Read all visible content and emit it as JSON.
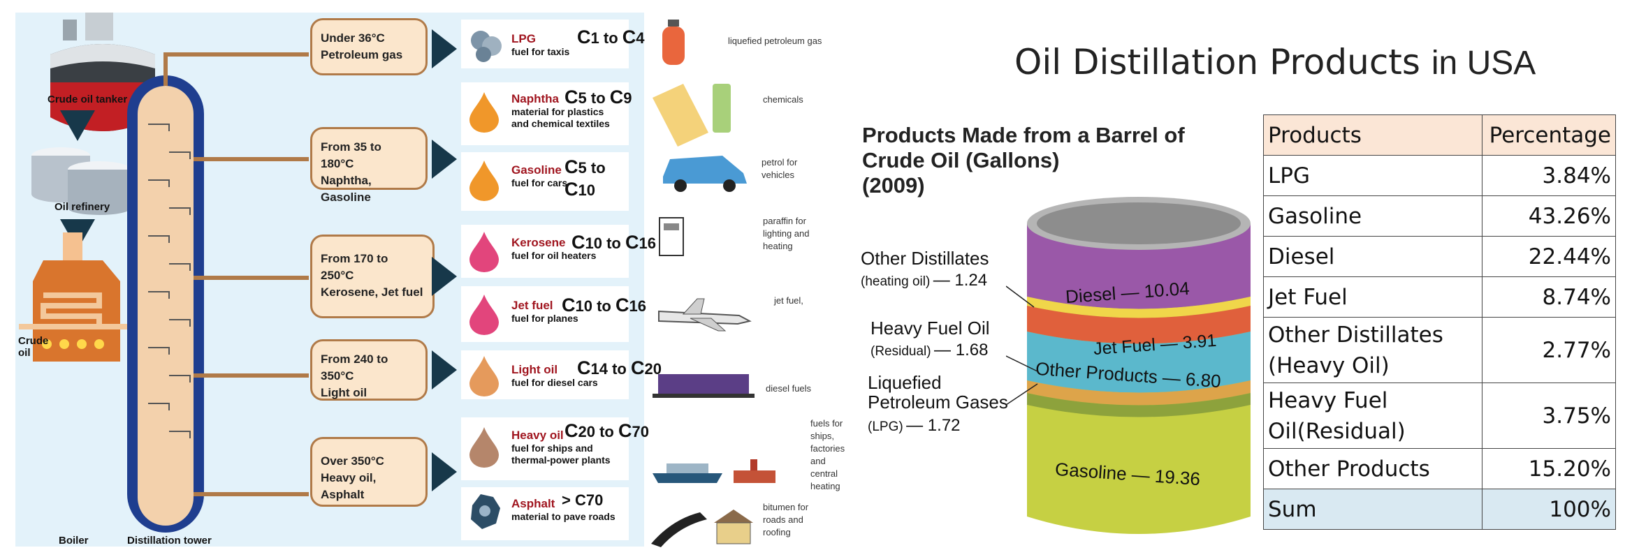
{
  "left_diagram": {
    "tanker_label": "Crude oil tanker",
    "refinery_label": "Oil refinery",
    "boiler_label": "Boiler",
    "crude_oil_label": "Crude oil",
    "tower_label": "Distillation tower",
    "fractions": [
      {
        "temp": "Under 36°C",
        "name": "Petroleum gas"
      },
      {
        "temp": "From 35 to 180°C",
        "name": "Naphtha, Gasoline"
      },
      {
        "temp": "From 170 to 250°C",
        "name": "Kerosene, Jet fuel"
      },
      {
        "temp": "From 240 to 350°C",
        "name": "Light oil"
      },
      {
        "temp": "Over 350°C",
        "name": "Heavy oil, Asphalt"
      }
    ],
    "products": [
      {
        "name": "LPG",
        "use": "fuel for taxis",
        "c_from": "1",
        "c_to": "4",
        "color": "#7d94a8"
      },
      {
        "name": "Naphtha",
        "use": "material for plastics and chemical textiles",
        "c_from": "5",
        "c_to": "9",
        "color": "#f0972a"
      },
      {
        "name": "Gasoline",
        "use": "fuel for cars",
        "c_from": "5",
        "c_to": "10",
        "color": "#f0972a"
      },
      {
        "name": "Kerosene",
        "use": "fuel for oil heaters",
        "c_from": "10",
        "c_to": "16",
        "color": "#e2457c"
      },
      {
        "name": "Jet fuel",
        "use": "fuel for planes",
        "c_from": "10",
        "c_to": "16",
        "color": "#e2457c"
      },
      {
        "name": "Light oil",
        "use": "fuel for diesel cars",
        "c_from": "14",
        "c_to": "20",
        "color": "#e59a5c"
      },
      {
        "name": "Heavy oil",
        "use": "fuel for ships and thermal-power plants",
        "c_from": "20",
        "c_to": "70",
        "color": "#b5866b"
      },
      {
        "name": "Asphalt",
        "use": "material to pave roads",
        "c_from": "> C",
        "c_to": "70",
        "color": "#2c4d66"
      }
    ],
    "c_to_word": "to",
    "c_letter": "C"
  },
  "icon_column": {
    "labels": [
      "liquefied petroleum gas",
      "chemicals",
      "petrol for vehicles",
      "paraffin for lighting and heating",
      "jet fuel,",
      "diesel fuels",
      "fuels for ships, factories and central heating",
      "bitumen for roads and roofing"
    ]
  },
  "right": {
    "title_part1": "Oil Distillation Products",
    "title_part2": "in USA",
    "barrel_title_line1": "Products Made from a Barrel of",
    "barrel_title_line2": "Crude Oil (Gallons)",
    "barrel_title_line3": "(2009)",
    "barrel_bands": [
      {
        "label": "Diesel — 10.04",
        "value": 10.04,
        "color": "#9a58a8"
      },
      {
        "label": "Jet Fuel — 3.91",
        "value": 3.91,
        "color": "#e0603c"
      },
      {
        "label": "Other Products — 6.80",
        "value": 6.8,
        "color": "#5bb8cc"
      },
      {
        "label": "Gasoline — 19.36",
        "value": 19.36,
        "color": "#c6d043"
      }
    ],
    "side_labels": [
      {
        "line1": "Other Distillates",
        "line2_small": "(heating oil)",
        "line2_value": "— 1.24"
      },
      {
        "line1": "Heavy Fuel Oil",
        "line2_small": "(Residual)",
        "line2_value": "— 1.68"
      },
      {
        "line1": "Liquefied",
        "line1b": "Petroleum Gases",
        "line2_small": "(LPG)",
        "line2_value": "— 1.72"
      }
    ],
    "table": {
      "headers": [
        "Products",
        "Percentage"
      ],
      "rows": [
        {
          "product": "LPG",
          "pct": "3.84%"
        },
        {
          "product": "Gasoline",
          "pct": "43.26%"
        },
        {
          "product": "Diesel",
          "pct": "22.44%"
        },
        {
          "product": "Jet Fuel",
          "pct": "8.74%"
        },
        {
          "product": "Other Distillates (Heavy Oil)",
          "pct": "2.77%"
        },
        {
          "product": "Heavy Fuel Oil(Residual)",
          "pct": "3.75%"
        },
        {
          "product": "Other Products",
          "pct": "15.20%"
        }
      ],
      "sum_label": "Sum",
      "sum_value": "100%"
    }
  }
}
